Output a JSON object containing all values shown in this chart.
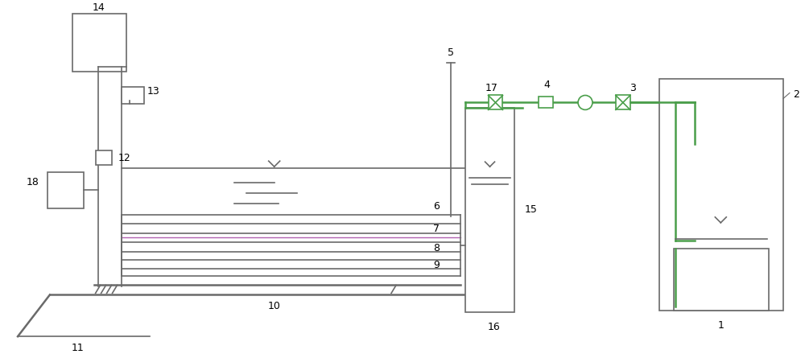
{
  "bg_color": "#ffffff",
  "line_color": "#6a6a6a",
  "green_color": "#4a9e4a",
  "purple_color": "#b060b0",
  "lw": 1.2,
  "lw2": 1.8,
  "fig_width": 10.0,
  "fig_height": 4.4,
  "dpi": 100
}
